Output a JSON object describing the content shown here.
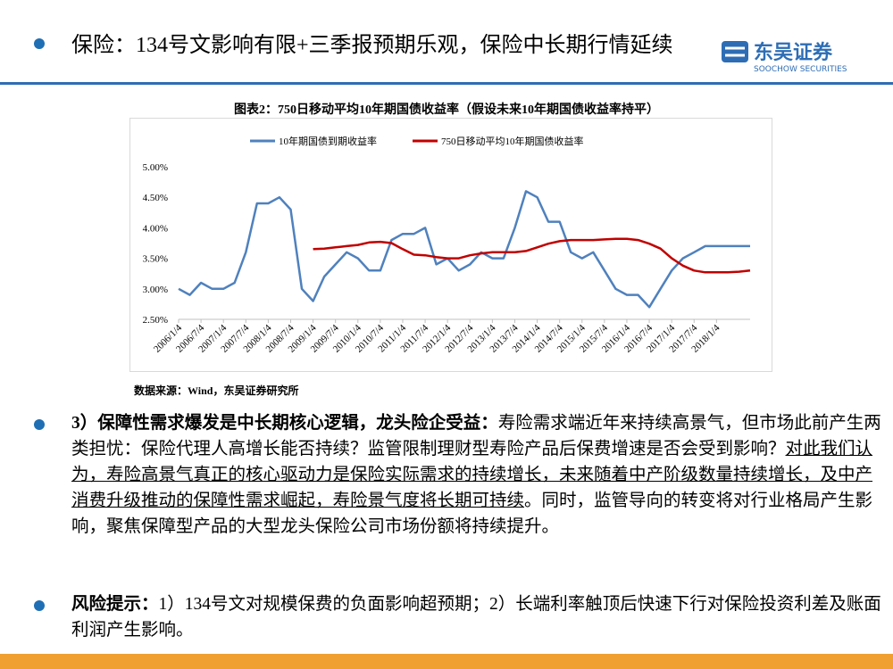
{
  "header": {
    "title": "保险：134号文影响有限+三季报预期乐观，保险中长期行情延续",
    "logo_cn": "东吴证券",
    "logo_en": "SOOCHOW SECURITIES"
  },
  "chart_caption": "图表2：750日移动平均10年期国债收益率（假设未来10年期国债收益率持平）",
  "chart_data": {
    "type": "line",
    "categories": [
      "2006/1/4",
      null,
      "2006/7/4",
      null,
      "2007/1/4",
      null,
      "2007/7/4",
      null,
      "2008/1/4",
      null,
      "2008/7/4",
      null,
      "2009/1/4",
      null,
      "2009/7/4",
      null,
      "2010/1/4",
      null,
      "2010/7/4",
      null,
      "2011/1/4",
      null,
      "2011/7/4",
      null,
      "2012/1/4",
      null,
      "2012/7/4",
      null,
      "2013/1/4",
      null,
      "2013/7/4",
      null,
      "2014/1/4",
      null,
      "2014/7/4",
      null,
      "2015/1/4",
      null,
      "2015/7/4",
      null,
      "2016/1/4",
      null,
      "2016/7/4",
      null,
      "2017/1/4",
      null,
      "2017/7/4",
      null,
      "2018/1/4",
      null,
      null,
      null
    ],
    "series": [
      {
        "name": "10年期国债到期收益率",
        "color": "#4f81bd",
        "values": [
          3.0,
          2.9,
          3.1,
          3.0,
          3.0,
          3.1,
          3.6,
          4.4,
          4.4,
          4.5,
          4.3,
          3.0,
          2.8,
          3.2,
          3.4,
          3.6,
          3.5,
          3.3,
          3.3,
          3.8,
          3.9,
          3.9,
          4.0,
          3.4,
          3.5,
          3.3,
          3.4,
          3.6,
          3.5,
          3.5,
          4.0,
          4.6,
          4.5,
          4.1,
          4.1,
          3.6,
          3.5,
          3.6,
          3.3,
          3.0,
          2.9,
          2.9,
          2.7,
          3.0,
          3.3,
          3.5,
          3.6,
          3.7,
          3.7,
          3.7,
          3.7,
          3.7
        ]
      },
      {
        "name": "750日移动平均10年期国债收益率",
        "color": "#c00000",
        "values": [
          null,
          null,
          null,
          null,
          null,
          null,
          null,
          null,
          null,
          null,
          null,
          null,
          3.65,
          3.66,
          3.68,
          3.7,
          3.72,
          3.76,
          3.77,
          3.75,
          3.65,
          3.56,
          3.55,
          3.52,
          3.5,
          3.5,
          3.55,
          3.58,
          3.6,
          3.6,
          3.6,
          3.62,
          3.68,
          3.74,
          3.78,
          3.8,
          3.8,
          3.8,
          3.81,
          3.82,
          3.82,
          3.8,
          3.74,
          3.66,
          3.5,
          3.38,
          3.3,
          3.27,
          3.27,
          3.27,
          3.28,
          3.3
        ]
      }
    ],
    "ylim": [
      2.5,
      5.0
    ],
    "yticks": [
      {
        "value": 2.5,
        "label": "2.50%"
      },
      {
        "value": 3.0,
        "label": "3.00%"
      },
      {
        "value": 3.5,
        "label": "3.50%"
      },
      {
        "value": 4.0,
        "label": "4.00%"
      },
      {
        "value": 4.5,
        "label": "4.50%"
      },
      {
        "value": 5.0,
        "label": "5.00%"
      }
    ],
    "legend": "top"
  },
  "source": "数据来源：Wind，东吴证券研究所",
  "body": {
    "paragraphs": [
      {
        "bold": "3）保障性需求爆发是中长期核心逻辑，龙头险企受益：",
        "text": "寿险需求端近年来持续高景气，但市场此前产生两类担忧：保险代理人高增长能否持续？监管限制理财型寿险产品后保费增速是否会受到影响？",
        "underlined": "对此我们认为，寿险高景气真正的核心驱动力是保险实际需求的持续增长，未来随着中产阶级数量持续增长，及中产消费升级推动的保障性需求崛起，寿险景气度将长期可持续",
        "tail": "。同时，监管导向的转变将对行业格局产生影响，聚焦保障型产品的大型龙头保险公司市场份额将持续提升。"
      },
      {
        "bold": "风险提示：",
        "text": "1）134号文对规模保费的负面影响超预期；2）长端利率触顶后快速下行对保险投资利差及账面利润产生影响。"
      }
    ]
  }
}
